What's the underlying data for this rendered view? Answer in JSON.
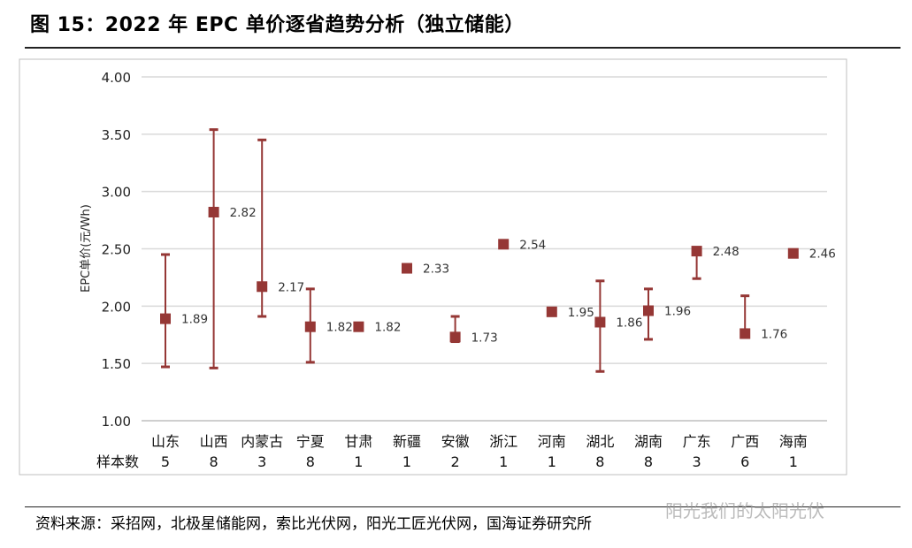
{
  "figure_title": "图 15：2022 年 EPC 单价逐省趋势分析（独立储能）",
  "source_text": "资料来源：采招网，北极星储能网，索比光伏网，阳光工匠光伏网，国海证券研究所",
  "watermark_text": "阳光我们的太阳光伏",
  "colors": {
    "marker": "#953735",
    "grid": "#d9d9d9",
    "axis": "#bfbfbf",
    "border": "#bfbfbf"
  },
  "chart_data": {
    "type": "scatter",
    "ylabel": "EPC单价(元/Wh)",
    "ylim": [
      1.0,
      4.0
    ],
    "yticks": [
      "1.00",
      "1.50",
      "2.00",
      "2.50",
      "3.00",
      "3.50",
      "4.00"
    ],
    "grid": true,
    "sample_row_label": "样本数",
    "categories": [
      "山东",
      "山西",
      "内蒙古",
      "宁夏",
      "甘肃",
      "新疆",
      "安徽",
      "浙江",
      "河南",
      "湖北",
      "湖南",
      "广东",
      "广西",
      "海南"
    ],
    "sample_counts": [
      "5",
      "8",
      "3",
      "8",
      "1",
      "1",
      "2",
      "1",
      "1",
      "8",
      "8",
      "3",
      "6",
      "1"
    ],
    "values": [
      1.89,
      2.82,
      2.17,
      1.82,
      1.82,
      2.33,
      1.73,
      2.54,
      1.95,
      1.86,
      1.96,
      2.48,
      1.76,
      2.46
    ],
    "value_labels": [
      "1.89",
      "2.82",
      "2.17",
      "1.82",
      "1.82",
      "2.33",
      "1.73",
      "2.54",
      "1.95",
      "1.86",
      "1.96",
      "2.48",
      "1.76",
      "2.46"
    ],
    "max": [
      2.45,
      3.54,
      3.45,
      2.15,
      null,
      null,
      1.91,
      null,
      null,
      2.22,
      2.15,
      2.5,
      2.09,
      null
    ],
    "min": [
      1.47,
      1.46,
      1.91,
      1.51,
      null,
      null,
      1.69,
      null,
      null,
      1.43,
      1.71,
      2.24,
      1.76,
      null
    ]
  }
}
